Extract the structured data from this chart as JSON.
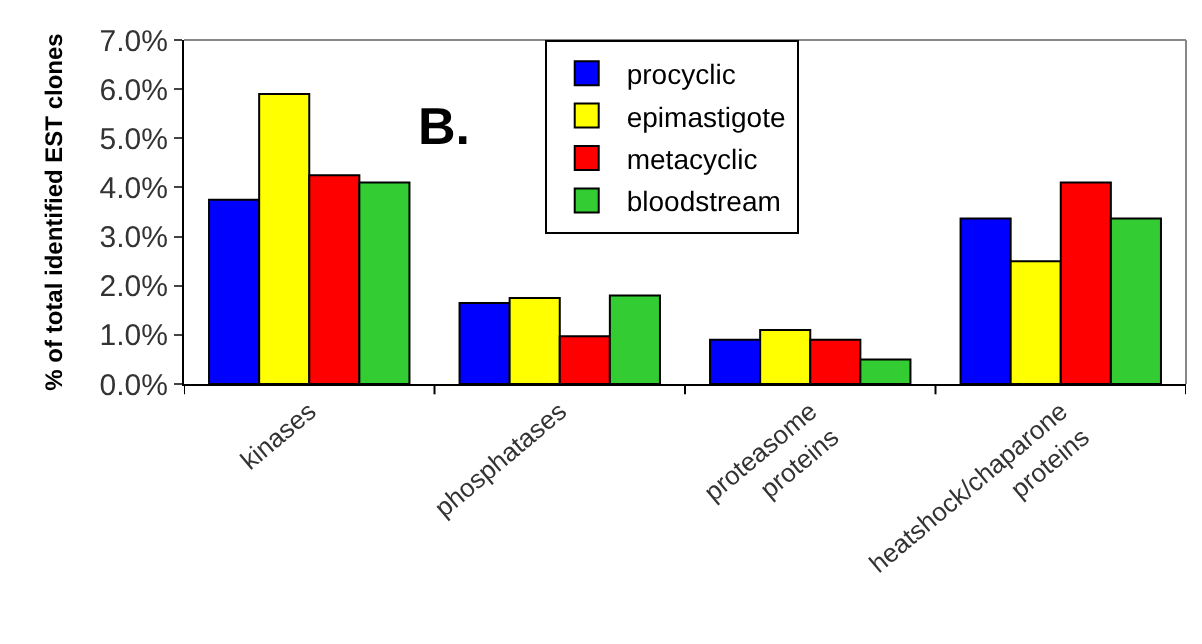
{
  "chart_data": {
    "type": "bar",
    "ylabel": "% of total identified EST clones",
    "categories": [
      "kinases",
      "phosphatases",
      "proteasome\nproteins",
      "heatshock/chaparone\nproteins"
    ],
    "series": [
      {
        "name": "procyclic",
        "color": "#0000ff",
        "values": [
          3.75,
          1.65,
          0.9,
          3.37
        ]
      },
      {
        "name": "epimastigote",
        "color": "#ffff00",
        "values": [
          5.9,
          1.75,
          1.1,
          2.5
        ]
      },
      {
        "name": "metacyclic",
        "color": "#ff0000",
        "values": [
          4.25,
          0.97,
          0.9,
          4.1
        ]
      },
      {
        "name": "bloodstream",
        "color": "#33cc33",
        "values": [
          4.1,
          1.8,
          0.5,
          3.37
        ]
      }
    ],
    "ylim": [
      0,
      7
    ],
    "yticks": [
      {
        "value": 0,
        "label": "0.0%"
      },
      {
        "value": 1,
        "label": "1.0%"
      },
      {
        "value": 2,
        "label": "2.0%"
      },
      {
        "value": 3,
        "label": "3.0%"
      },
      {
        "value": 4,
        "label": "4.0%"
      },
      {
        "value": 5,
        "label": "5.0%"
      },
      {
        "value": 6,
        "label": "6.0%"
      },
      {
        "value": 7,
        "label": "7.0%"
      }
    ],
    "annotations": [
      "B."
    ],
    "legend": "top"
  }
}
